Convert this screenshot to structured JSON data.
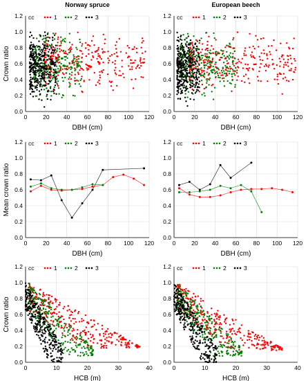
{
  "colors": {
    "cc1": "#ff0000",
    "cc2": "#008000",
    "cc3": "#000000",
    "axis": "#000000",
    "grid": "#d9d9d9"
  },
  "chart_data": [
    {
      "id": "spruce-dbh-scatter",
      "type": "scatter",
      "title": "Norway spruce",
      "xlabel": "DBH (cm)",
      "ylabel": "Crown ratio",
      "xlim": [
        0,
        120
      ],
      "ylim": [
        0.0,
        1.2
      ],
      "xticks": [
        "0",
        "20",
        "40",
        "60",
        "80",
        "100",
        "120"
      ],
      "yticks": [
        "0.0",
        "0.2",
        "0.4",
        "0.6",
        "0.8",
        "1.0",
        "1.2"
      ],
      "grid": true,
      "legend_title": "cc",
      "legend": [
        "1",
        "2",
        "3"
      ],
      "series": [
        {
          "name": "1",
          "color": "#ff0000",
          "x_range": [
            18,
            118
          ],
          "y_range": [
            0.18,
            1.0
          ],
          "density": "dense",
          "n": 320
        },
        {
          "name": "2",
          "color": "#008000",
          "x_range": [
            8,
            55
          ],
          "y_range": [
            0.05,
            1.0
          ],
          "density": "dense",
          "n": 260
        },
        {
          "name": "3",
          "color": "#000000",
          "x_range": [
            4,
            30
          ],
          "y_range": [
            0.0,
            1.0
          ],
          "density": "dense",
          "n": 340
        }
      ]
    },
    {
      "id": "beech-dbh-scatter",
      "type": "scatter",
      "title": "European beech",
      "xlabel": "DBH (cm)",
      "ylabel": "",
      "xlim": [
        0,
        120
      ],
      "ylim": [
        0.0,
        1.2
      ],
      "xticks": [
        "0",
        "20",
        "40",
        "60",
        "80",
        "100",
        "120"
      ],
      "yticks": [
        "0.0",
        "0.2",
        "0.4",
        "0.6",
        "0.8",
        "1.0",
        "1.2"
      ],
      "grid": true,
      "legend_title": "cc",
      "legend": [
        "1",
        "2",
        "3"
      ],
      "series": [
        {
          "name": "1",
          "color": "#ff0000",
          "x_range": [
            15,
            118
          ],
          "y_range": [
            0.15,
            1.0
          ],
          "density": "dense",
          "n": 340
        },
        {
          "name": "2",
          "color": "#008000",
          "x_range": [
            6,
            60
          ],
          "y_range": [
            0.1,
            1.0
          ],
          "density": "dense",
          "n": 280
        },
        {
          "name": "3",
          "color": "#000000",
          "x_range": [
            3,
            25
          ],
          "y_range": [
            0.0,
            1.0
          ],
          "density": "dense",
          "n": 340
        }
      ]
    },
    {
      "id": "spruce-mean-line",
      "type": "line",
      "title": "",
      "xlabel": "DBH (cm)",
      "ylabel": "Mean crown ratio",
      "xlim": [
        0,
        120
      ],
      "ylim": [
        0.0,
        1.2
      ],
      "xticks": [
        "0",
        "20",
        "40",
        "60",
        "80",
        "100",
        "120"
      ],
      "yticks": [
        "0.0",
        "0.2",
        "0.4",
        "0.6",
        "0.8",
        "1.0",
        "1.2"
      ],
      "grid": true,
      "legend_title": "cc",
      "legend": [
        "1",
        "2",
        "3"
      ],
      "series": [
        {
          "name": "1",
          "color": "#ff0000",
          "x": [
            5,
            15,
            25,
            35,
            45,
            55,
            65,
            75,
            85,
            95,
            105,
            115
          ],
          "y": [
            0.58,
            0.65,
            0.6,
            0.59,
            0.6,
            0.61,
            0.64,
            0.66,
            0.76,
            0.79,
            0.74,
            0.66
          ]
        },
        {
          "name": "2",
          "color": "#008000",
          "x": [
            5,
            15,
            25,
            35,
            45,
            55,
            65,
            75
          ],
          "y": [
            0.64,
            0.68,
            0.62,
            0.6,
            0.6,
            0.63,
            0.67,
            0.66
          ]
        },
        {
          "name": "3",
          "color": "#000000",
          "x": [
            5,
            15,
            25,
            35,
            45,
            55,
            65,
            75,
            115
          ],
          "y": [
            0.73,
            0.72,
            0.78,
            0.47,
            0.25,
            0.43,
            0.6,
            0.85,
            0.87
          ]
        }
      ]
    },
    {
      "id": "beech-mean-line",
      "type": "line",
      "title": "",
      "xlabel": "DBH (cm)",
      "ylabel": "",
      "xlim": [
        0,
        120
      ],
      "ylim": [
        0.0,
        1.2
      ],
      "xticks": [
        "0",
        "20",
        "40",
        "60",
        "80",
        "100",
        "120"
      ],
      "yticks": [
        "0.0",
        "0.2",
        "0.4",
        "0.6",
        "0.8",
        "1.0",
        "1.2"
      ],
      "grid": true,
      "legend_title": "cc",
      "legend": [
        "1",
        "2",
        "3"
      ],
      "series": [
        {
          "name": "1",
          "color": "#ff0000",
          "x": [
            5,
            15,
            25,
            35,
            45,
            55,
            65,
            75,
            85,
            95,
            105,
            115
          ],
          "y": [
            0.62,
            0.54,
            0.51,
            0.51,
            0.53,
            0.57,
            0.6,
            0.61,
            0.61,
            0.62,
            0.6,
            0.57
          ]
        },
        {
          "name": "2",
          "color": "#008000",
          "x": [
            5,
            15,
            25,
            35,
            45,
            55,
            65,
            75,
            85
          ],
          "y": [
            0.57,
            0.57,
            0.58,
            0.6,
            0.65,
            0.62,
            0.66,
            0.58,
            0.32
          ]
        },
        {
          "name": "3",
          "color": "#000000",
          "x": [
            5,
            15,
            25,
            35,
            45,
            55,
            75
          ],
          "y": [
            0.66,
            0.7,
            0.6,
            0.67,
            0.91,
            0.75,
            0.94
          ]
        }
      ]
    },
    {
      "id": "spruce-hcb-scatter",
      "type": "scatter",
      "title": "",
      "xlabel": "HCB (m)",
      "ylabel": "Crown ratio",
      "xlim": [
        0,
        40
      ],
      "ylim": [
        0.0,
        1.2
      ],
      "xticks": [
        "0",
        "10",
        "20",
        "30",
        "40"
      ],
      "yticks": [
        "0.0",
        "0.2",
        "0.4",
        "0.6",
        "0.8",
        "1.0",
        "1.2"
      ],
      "grid": true,
      "legend_title": "cc",
      "legend": [
        "1",
        "2",
        "3"
      ],
      "series": [
        {
          "name": "1",
          "color": "#ff0000",
          "x_range": [
            1,
            37
          ],
          "y_range": [
            0.18,
            1.0
          ],
          "density": "dense",
          "n": 320,
          "trend": "negative"
        },
        {
          "name": "2",
          "color": "#008000",
          "x_range": [
            1,
            22
          ],
          "y_range": [
            0.08,
            1.0
          ],
          "density": "dense",
          "n": 260,
          "trend": "negative"
        },
        {
          "name": "3",
          "color": "#000000",
          "x_range": [
            0,
            12
          ],
          "y_range": [
            0.0,
            1.0
          ],
          "density": "dense",
          "n": 300,
          "trend": "negative"
        }
      ]
    },
    {
      "id": "beech-hcb-scatter",
      "type": "scatter",
      "title": "",
      "xlabel": "HCB (m)",
      "ylabel": "",
      "xlim": [
        0,
        40
      ],
      "ylim": [
        0.0,
        1.2
      ],
      "xticks": [
        "0",
        "10",
        "20",
        "30",
        "40"
      ],
      "yticks": [
        "0.0",
        "0.2",
        "0.4",
        "0.6",
        "0.8",
        "1.0",
        "1.2"
      ],
      "grid": true,
      "legend_title": "cc",
      "legend": [
        "1",
        "2",
        "3"
      ],
      "series": [
        {
          "name": "1",
          "color": "#ff0000",
          "x_range": [
            1,
            35
          ],
          "y_range": [
            0.15,
            1.0
          ],
          "density": "dense",
          "n": 320,
          "trend": "negative"
        },
        {
          "name": "2",
          "color": "#008000",
          "x_range": [
            1,
            22
          ],
          "y_range": [
            0.08,
            1.0
          ],
          "density": "dense",
          "n": 260,
          "trend": "negative"
        },
        {
          "name": "3",
          "color": "#000000",
          "x_range": [
            0,
            14
          ],
          "y_range": [
            0.0,
            1.0
          ],
          "density": "dense",
          "n": 300,
          "trend": "negative"
        }
      ]
    }
  ]
}
